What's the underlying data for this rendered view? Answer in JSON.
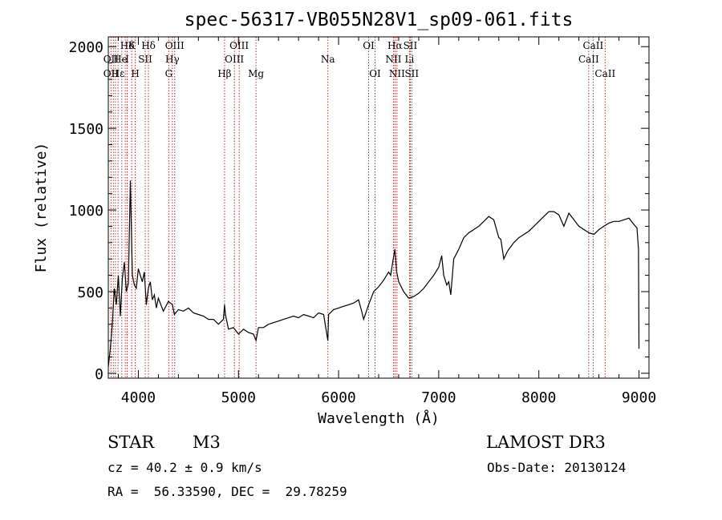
{
  "chart_data": {
    "type": "line",
    "title": "spec-56317-VB055N28V1_sp09-061.fits",
    "xlabel": "Wavelength (Å)",
    "ylabel": "Flux (relative)",
    "xlim": [
      3700,
      9100
    ],
    "ylim": [
      -30,
      2060
    ],
    "xticks": [
      4000,
      5000,
      6000,
      7000,
      8000,
      9000
    ],
    "yticks": [
      0,
      500,
      1000,
      1500,
      2000
    ],
    "grid": false,
    "series": [
      {
        "x": [
          3700,
          3720,
          3740,
          3760,
          3780,
          3800,
          3820,
          3840,
          3860,
          3880,
          3900,
          3920,
          3940,
          3960,
          3980,
          4000,
          4020,
          4040,
          4060,
          4080,
          4100,
          4120,
          4140,
          4160,
          4180,
          4200,
          4250,
          4300,
          4340,
          4360,
          4400,
          4450,
          4500,
          4550,
          4600,
          4650,
          4700,
          4750,
          4800,
          4850,
          4861,
          4870,
          4900,
          4950,
          5000,
          5050,
          5100,
          5150,
          5175,
          5200,
          5250,
          5300,
          5350,
          5400,
          5450,
          5500,
          5550,
          5600,
          5650,
          5700,
          5750,
          5800,
          5850,
          5893,
          5900,
          5950,
          6000,
          6050,
          6100,
          6150,
          6200,
          6230,
          6250,
          6300,
          6350,
          6400,
          6450,
          6500,
          6520,
          6540,
          6563,
          6580,
          6600,
          6650,
          6700,
          6750,
          6800,
          6850,
          6900,
          6950,
          7000,
          7030,
          7050,
          7080,
          7100,
          7120,
          7150,
          7200,
          7250,
          7300,
          7350,
          7400,
          7450,
          7500,
          7550,
          7600,
          7620,
          7650,
          7680,
          7700,
          7750,
          7800,
          7850,
          7900,
          7950,
          8000,
          8050,
          8100,
          8150,
          8200,
          8250,
          8300,
          8350,
          8400,
          8450,
          8500,
          8550,
          8600,
          8650,
          8700,
          8750,
          8800,
          8850,
          8900,
          8950,
          8980,
          8995,
          9000
        ],
        "y": [
          40,
          150,
          300,
          520,
          420,
          600,
          350,
          580,
          680,
          500,
          550,
          1180,
          600,
          540,
          520,
          640,
          600,
          560,
          620,
          420,
          520,
          560,
          450,
          480,
          400,
          460,
          380,
          440,
          420,
          360,
          390,
          380,
          400,
          370,
          360,
          350,
          330,
          330,
          300,
          330,
          420,
          360,
          270,
          280,
          240,
          270,
          250,
          240,
          200,
          280,
          280,
          300,
          310,
          320,
          330,
          340,
          350,
          340,
          360,
          350,
          340,
          370,
          360,
          200,
          360,
          390,
          400,
          410,
          420,
          430,
          450,
          380,
          330,
          420,
          500,
          530,
          570,
          620,
          600,
          680,
          760,
          620,
          560,
          500,
          460,
          470,
          490,
          520,
          560,
          600,
          650,
          720,
          600,
          540,
          560,
          480,
          700,
          760,
          830,
          860,
          880,
          900,
          930,
          960,
          940,
          830,
          820,
          700,
          740,
          760,
          800,
          830,
          850,
          870,
          900,
          930,
          960,
          990,
          990,
          970,
          900,
          980,
          940,
          900,
          880,
          860,
          850,
          880,
          900,
          920,
          930,
          930,
          940,
          950,
          910,
          890,
          760,
          150
        ]
      }
    ],
    "annotations": {
      "row1": [
        {
          "label": "Hδ",
          "x": 3889
        },
        {
          "label": "K",
          "x": 3934
        },
        {
          "label": "Hδ",
          "x": 4101
        },
        {
          "label": "OIII",
          "x": 4363
        },
        {
          "label": "OIII",
          "x": 5007
        },
        {
          "label": "OI",
          "x": 6300
        },
        {
          "label": "Hα",
          "x": 6563
        },
        {
          "label": "SII",
          "x": 6716
        },
        {
          "label": "CaII",
          "x": 8542
        }
      ],
      "row2": [
        {
          "label": "OII",
          "x": 3727
        },
        {
          "label": "He",
          "x": 3820
        },
        {
          "label": "I",
          "x": 3889
        },
        {
          "label": "SII",
          "x": 4069
        },
        {
          "label": "Hγ",
          "x": 4340
        },
        {
          "label": "OIII",
          "x": 4959
        },
        {
          "label": "Na",
          "x": 5893
        },
        {
          "label": "NII",
          "x": 6548
        },
        {
          "label": "Li",
          "x": 6708
        },
        {
          "label": "CaII",
          "x": 8498
        }
      ],
      "row3": [
        {
          "label": "OII",
          "x": 3727
        },
        {
          "label": "Hε",
          "x": 3797
        },
        {
          "label": "H",
          "x": 3969
        },
        {
          "label": "G",
          "x": 4304
        },
        {
          "label": "Hβ",
          "x": 4861
        },
        {
          "label": "Mg",
          "x": 5175
        },
        {
          "label": "OI",
          "x": 6364
        },
        {
          "label": "NII",
          "x": 6583
        },
        {
          "label": "SII",
          "x": 6731
        },
        {
          "label": "CaII",
          "x": 8662
        }
      ],
      "lines_x": [
        3727,
        3750,
        3771,
        3797,
        3835,
        3869,
        3889,
        3934,
        3969,
        4069,
        4101,
        4304,
        4340,
        4363,
        4861,
        4959,
        5007,
        5175,
        5893,
        6300,
        6364,
        6548,
        6563,
        6583,
        6708,
        6716,
        6731,
        8498,
        8542,
        8662
      ]
    }
  },
  "info": {
    "class": "STAR",
    "subclass": "M3",
    "survey": "LAMOST DR3",
    "cz": "cz = 40.2 ± 0.9 km/s",
    "obsdate": "Obs-Date: 20130124",
    "radec": "RA =  56.33590, DEC =  29.78259"
  },
  "colors": {
    "lines": "#b01818",
    "spectrum": "#000000"
  }
}
